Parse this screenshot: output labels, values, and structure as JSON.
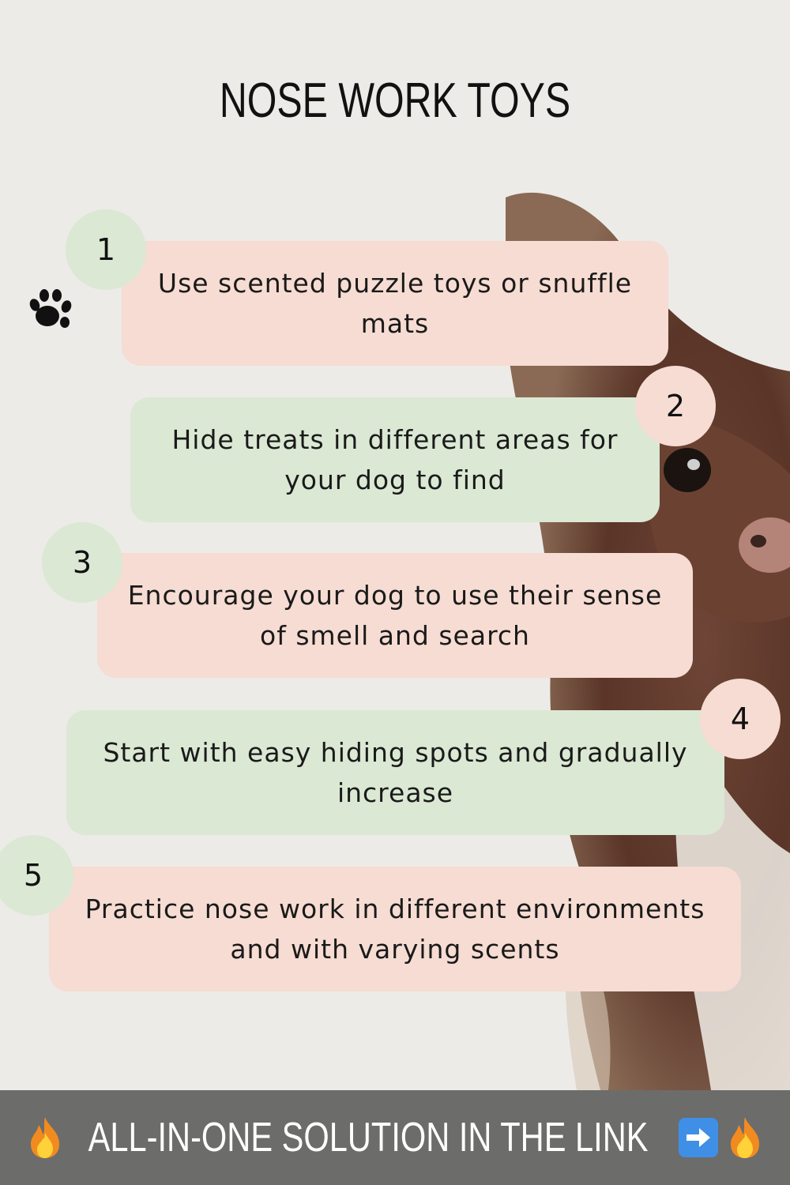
{
  "title": "NOSE WORK TOYS",
  "steps": [
    {
      "number": "1",
      "text": "Use scented puzzle toys or snuffle mats"
    },
    {
      "number": "2",
      "text": "Hide treats in different areas for your dog to find"
    },
    {
      "number": "3",
      "text": "Encourage your dog to use their sense of smell and search"
    },
    {
      "number": "4",
      "text": "Start with easy hiding spots and gradually increase"
    },
    {
      "number": "5",
      "text": "Practice nose work in different environments and with varying scents"
    }
  ],
  "footer": {
    "text": "ALL-IN-ONE SOLUTION IN THE LINK"
  },
  "colors": {
    "pink_card": "#f6dcd2",
    "green_card": "#dbe8d4",
    "footer_bg": "#5a5a5a"
  },
  "icons": {
    "paw": "paw-icon",
    "fire": "fire-icon",
    "arrow": "right-arrow-icon"
  }
}
